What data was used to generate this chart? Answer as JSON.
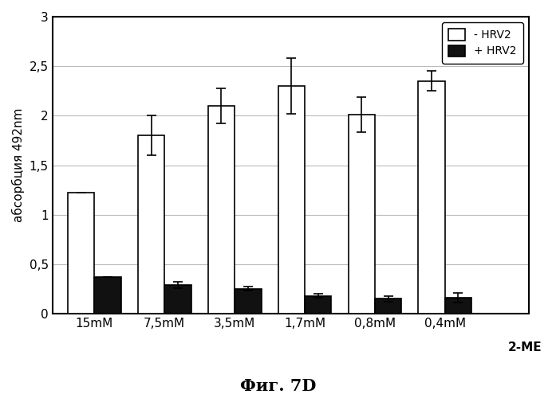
{
  "categories": [
    "15mM",
    "7,5mM",
    "3,5mM",
    "1,7mM",
    "0,8mM",
    "0,4mM"
  ],
  "xlabel_right": "2-ME",
  "ylabel": "абсорбция 492nm",
  "title": "Фиг. 7D",
  "ylim": [
    0,
    3
  ],
  "yticks": [
    0,
    0.5,
    1.0,
    1.5,
    2.0,
    2.5,
    3.0
  ],
  "ytick_labels": [
    "0",
    "0,5",
    "1",
    "1,5",
    "2",
    "2,5",
    "3"
  ],
  "white_bars": [
    1.22,
    1.8,
    2.1,
    2.3,
    2.01,
    2.35
  ],
  "black_bars": [
    0.37,
    0.29,
    0.25,
    0.18,
    0.15,
    0.16
  ],
  "white_errors": [
    0.0,
    0.2,
    0.18,
    0.28,
    0.18,
    0.1
  ],
  "black_errors": [
    0.0,
    0.03,
    0.02,
    0.02,
    0.03,
    0.05
  ],
  "legend_labels": [
    "- HRV2",
    "+ HRV2"
  ],
  "bar_width": 0.38,
  "white_color": "#ffffff",
  "black_color": "#111111",
  "edge_color": "#000000",
  "background_color": "#ffffff",
  "figure_bg": "#ffffff",
  "grid_color": "#bbbbbb"
}
